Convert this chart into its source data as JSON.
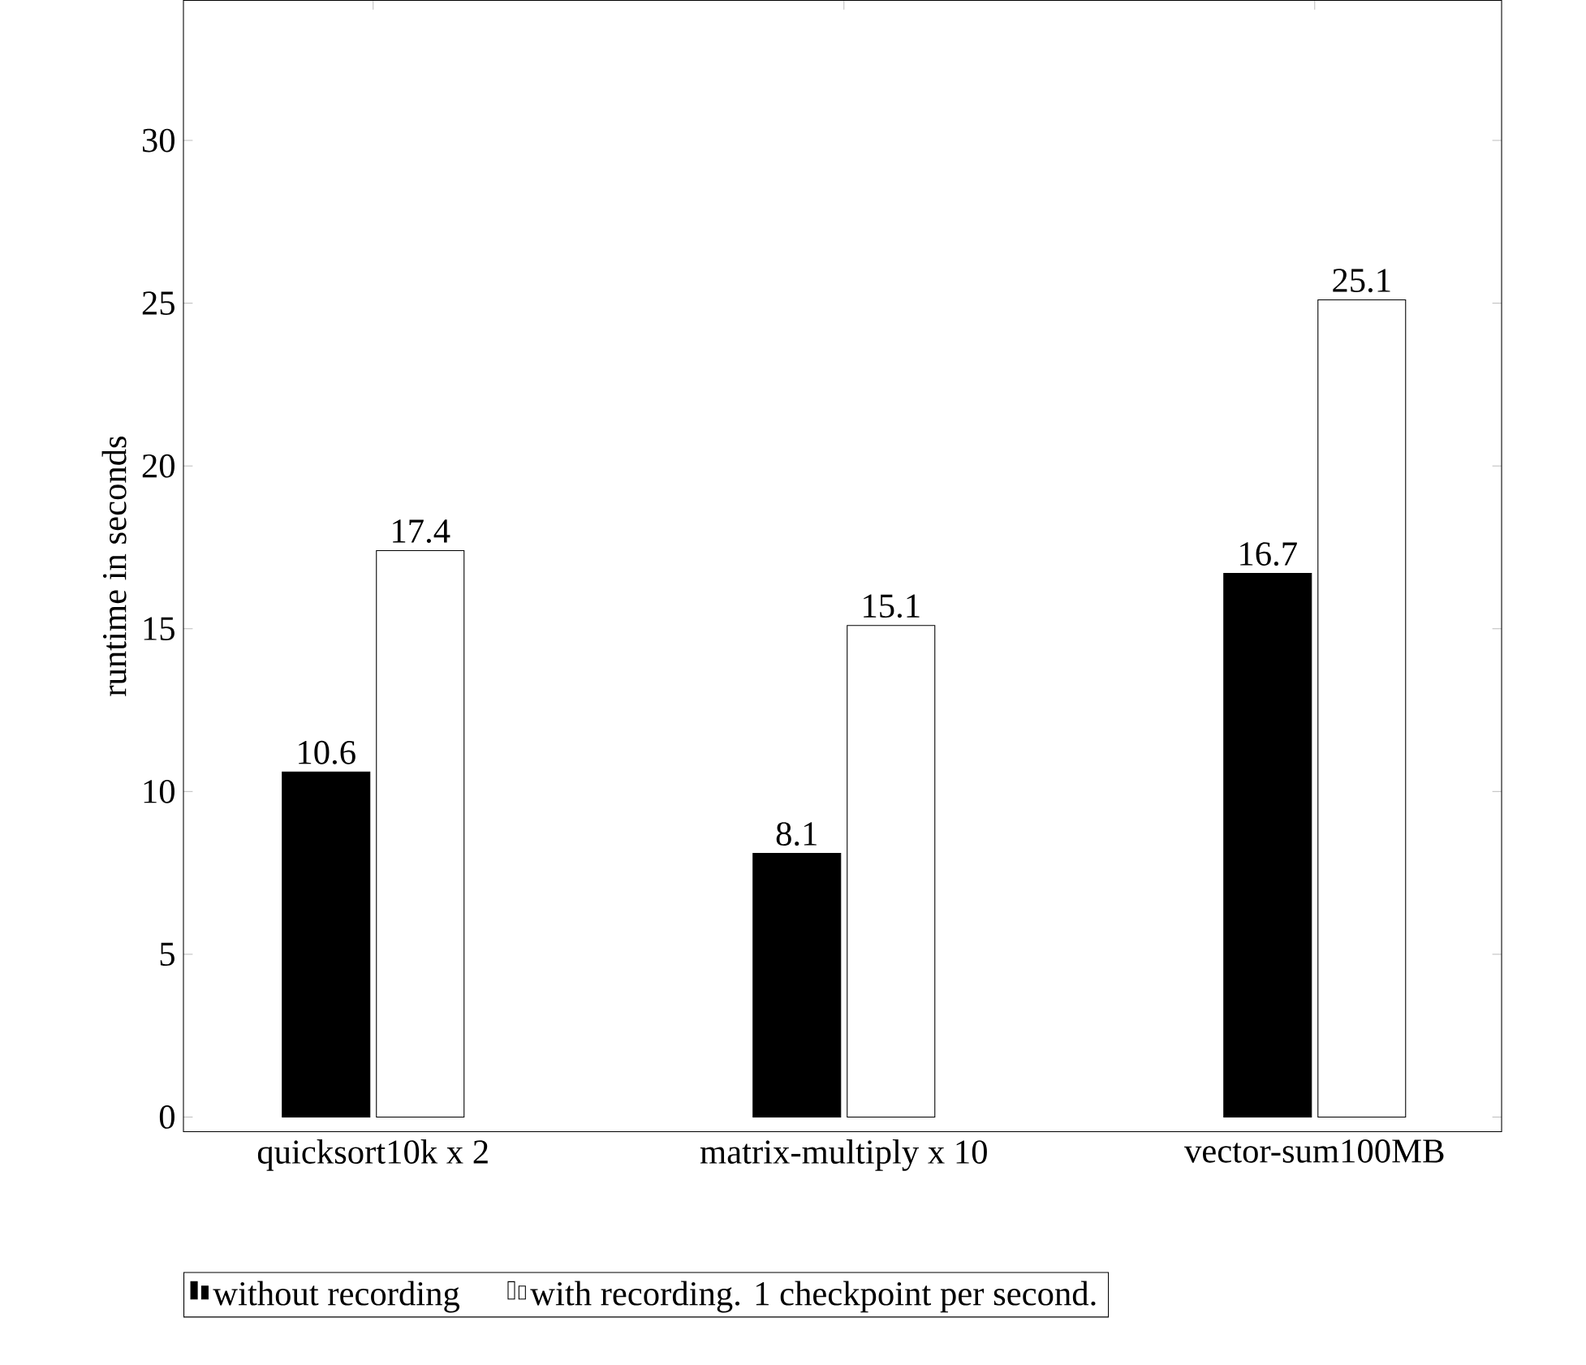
{
  "chart_data": {
    "type": "bar",
    "ylabel": "runtime in seconds",
    "categories": [
      "quicksort10k x 2",
      "matrix-multiply x 10",
      "vector-sum100MB"
    ],
    "series": [
      {
        "name": "without recording",
        "color": "#000000",
        "values": [
          10.6,
          8.1,
          16.7
        ]
      },
      {
        "name": "with recording. 1 checkpoint per second.",
        "color": "#ffffff",
        "values": [
          17.4,
          15.1,
          25.1
        ]
      }
    ],
    "ylim": [
      -0.45,
      34.3
    ],
    "yticks": [
      0,
      5,
      10,
      15,
      20,
      25,
      30
    ],
    "data_labels": true,
    "legend": "bottom"
  }
}
